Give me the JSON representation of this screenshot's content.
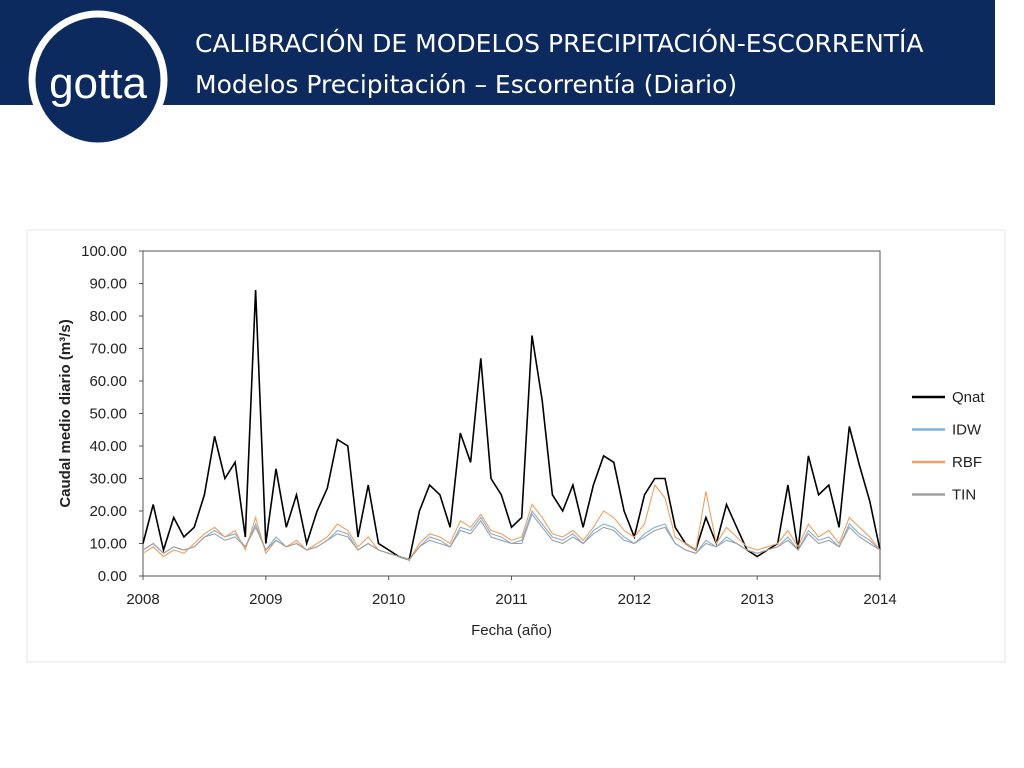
{
  "header": {
    "logo": "gotta",
    "title": "CALIBRACIÓN DE MODELOS PRECIPITACIÓN-ESCORRENTÍA",
    "subtitle": "Modelos Precipitación – Escorrentía (Diario)"
  },
  "chart_data": {
    "type": "line",
    "x_label": "Fecha (año)",
    "y_label": "Caudal medio diario (m³/s)",
    "x": [
      2008,
      2008.083,
      2008.167,
      2008.25,
      2008.333,
      2008.417,
      2008.5,
      2008.583,
      2008.667,
      2008.75,
      2008.833,
      2008.917,
      2009,
      2009.083,
      2009.167,
      2009.25,
      2009.333,
      2009.417,
      2009.5,
      2009.583,
      2009.667,
      2009.75,
      2009.833,
      2009.917,
      2010,
      2010.083,
      2010.167,
      2010.25,
      2010.333,
      2010.417,
      2010.5,
      2010.583,
      2010.667,
      2010.75,
      2010.833,
      2010.917,
      2011,
      2011.083,
      2011.167,
      2011.25,
      2011.333,
      2011.417,
      2011.5,
      2011.583,
      2011.667,
      2011.75,
      2011.833,
      2011.917,
      2012,
      2012.083,
      2012.167,
      2012.25,
      2012.333,
      2012.417,
      2012.5,
      2012.583,
      2012.667,
      2012.75,
      2012.833,
      2012.917,
      2013,
      2013.083,
      2013.167,
      2013.25,
      2013.333,
      2013.417,
      2013.5,
      2013.583,
      2013.667,
      2013.75,
      2013.833,
      2013.917,
      2014
    ],
    "series": [
      {
        "name": "Qnat",
        "color": "#000000",
        "values": [
          10,
          22,
          8,
          18,
          12,
          15,
          25,
          43,
          30,
          35,
          12,
          88,
          10,
          33,
          15,
          25,
          10,
          20,
          27,
          42,
          40,
          12,
          28,
          10,
          8,
          6,
          5,
          20,
          28,
          25,
          15,
          44,
          35,
          67,
          30,
          25,
          15,
          18,
          74,
          54,
          25,
          20,
          28,
          15,
          28,
          37,
          35,
          20,
          12,
          25,
          30,
          30,
          15,
          10,
          8,
          18,
          10,
          22,
          15,
          8,
          6,
          8,
          10,
          28,
          8,
          37,
          25,
          28,
          15,
          46,
          34,
          23,
          8
        ]
      },
      {
        "name": "IDW",
        "color": "#7fb2dc",
        "values": [
          8,
          10,
          7,
          9,
          8,
          9,
          12,
          14,
          12,
          13,
          9,
          16,
          8,
          12,
          9,
          10,
          8,
          9,
          11,
          14,
          13,
          8,
          10,
          8,
          7,
          6,
          5,
          9,
          12,
          11,
          9,
          15,
          14,
          18,
          13,
          12,
          10,
          11,
          20,
          16,
          12,
          11,
          13,
          10,
          14,
          16,
          15,
          12,
          10,
          13,
          15,
          16,
          10,
          8,
          7,
          11,
          9,
          12,
          10,
          8,
          7,
          8,
          9,
          12,
          8,
          14,
          11,
          12,
          9,
          16,
          13,
          11,
          8
        ]
      },
      {
        "name": "RBF",
        "color": "#f0a060",
        "values": [
          7,
          9,
          6,
          8,
          7,
          10,
          13,
          15,
          12,
          14,
          8,
          18,
          7,
          11,
          9,
          11,
          8,
          10,
          12,
          16,
          14,
          9,
          12,
          8,
          7,
          6,
          5,
          10,
          13,
          12,
          10,
          17,
          15,
          19,
          14,
          13,
          11,
          12,
          22,
          18,
          13,
          12,
          14,
          11,
          15,
          20,
          18,
          14,
          12,
          16,
          28,
          24,
          12,
          10,
          8,
          26,
          10,
          15,
          12,
          9,
          8,
          9,
          10,
          14,
          9,
          16,
          12,
          14,
          10,
          18,
          15,
          12,
          8
        ]
      },
      {
        "name": "TIN",
        "color": "#a0a0a0",
        "values": [
          8,
          10,
          7,
          9,
          8,
          9,
          12,
          13,
          11,
          12,
          9,
          15,
          8,
          11,
          9,
          10,
          8,
          9,
          11,
          13,
          12,
          8,
          10,
          8,
          7,
          6,
          5,
          9,
          11,
          10,
          9,
          14,
          13,
          17,
          12,
          11,
          10,
          10,
          19,
          15,
          11,
          10,
          12,
          10,
          13,
          15,
          14,
          11,
          10,
          12,
          14,
          15,
          10,
          8,
          7,
          10,
          9,
          11,
          10,
          8,
          7,
          8,
          9,
          11,
          8,
          13,
          10,
          11,
          9,
          15,
          12,
          10,
          8
        ]
      }
    ],
    "xlim": [
      2008,
      2014
    ],
    "xticks": [
      2008,
      2009,
      2010,
      2011,
      2012,
      2013,
      2014
    ],
    "ylim": [
      0,
      100
    ],
    "yticks": [
      {
        "value": 0,
        "label": "0.00"
      },
      {
        "value": 10,
        "label": "10.00"
      },
      {
        "value": 20,
        "label": "20.00"
      },
      {
        "value": 30,
        "label": "30.00"
      },
      {
        "value": 40,
        "label": "40.00"
      },
      {
        "value": 50,
        "label": "50.00"
      },
      {
        "value": 60,
        "label": "60.00"
      },
      {
        "value": 70,
        "label": "70.00"
      },
      {
        "value": 80,
        "label": "80.00"
      },
      {
        "value": 90,
        "label": "90.00"
      },
      {
        "value": 100,
        "label": "100.00"
      }
    ],
    "legend": "right"
  }
}
